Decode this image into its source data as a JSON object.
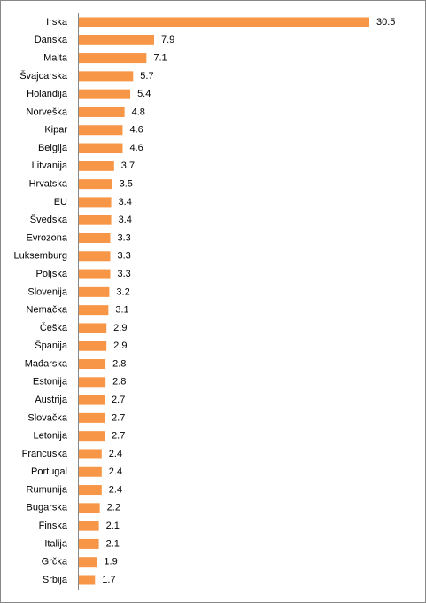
{
  "chart_data": {
    "type": "bar",
    "orientation": "horizontal",
    "categories": [
      "Irska",
      "Danska",
      "Malta",
      "Švajcarska",
      "Holandija",
      "Norveška",
      "Kipar",
      "Belgija",
      "Litvanija",
      "Hrvatska",
      "EU",
      "Švedska",
      "Evrozona",
      "Luksemburg",
      "Poljska",
      "Slovenija",
      "Nemačka",
      "Češka",
      "Španija",
      "Mađarska",
      "Estonija",
      "Austrija",
      "Slovačka",
      "Letonija",
      "Francuska",
      "Portugal",
      "Rumunija",
      "Bugarska",
      "Finska",
      "Italija",
      "Grčka",
      "Srbija"
    ],
    "values": [
      30.5,
      7.9,
      7.1,
      5.7,
      5.4,
      4.8,
      4.6,
      4.6,
      3.7,
      3.5,
      3.4,
      3.4,
      3.3,
      3.3,
      3.3,
      3.2,
      3.1,
      2.9,
      2.9,
      2.8,
      2.8,
      2.7,
      2.7,
      2.7,
      2.4,
      2.4,
      2.4,
      2.2,
      2.1,
      2.1,
      1.9,
      1.7
    ],
    "color": "#f79646"
  }
}
